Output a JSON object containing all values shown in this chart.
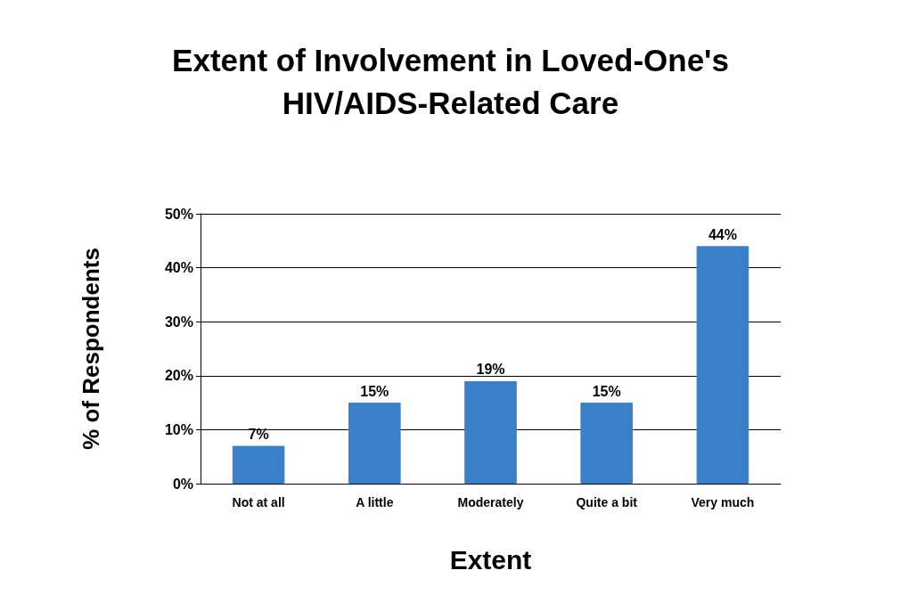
{
  "chart_data": {
    "type": "bar",
    "title": "Extent of Involvement in Loved-One's\nHIV/AIDS-Related Care",
    "xlabel": "Extent",
    "ylabel": "% of Respondents",
    "categories": [
      "Not at all",
      "A little",
      "Moderately",
      "Quite a bit",
      "Very much"
    ],
    "values": [
      7,
      15,
      19,
      15,
      44
    ],
    "color": "#3a80c8",
    "value_labels": [
      "7%",
      "15%",
      "19%",
      "15%",
      "44%"
    ],
    "ylim": [
      0,
      50
    ],
    "yticks": [
      {
        "value": 0,
        "label": "0%"
      },
      {
        "value": 10,
        "label": "10%"
      },
      {
        "value": 20,
        "label": "20%"
      },
      {
        "value": 30,
        "label": "30%"
      },
      {
        "value": 40,
        "label": "40%"
      },
      {
        "value": 50,
        "label": "50%"
      }
    ],
    "grid": "y"
  }
}
